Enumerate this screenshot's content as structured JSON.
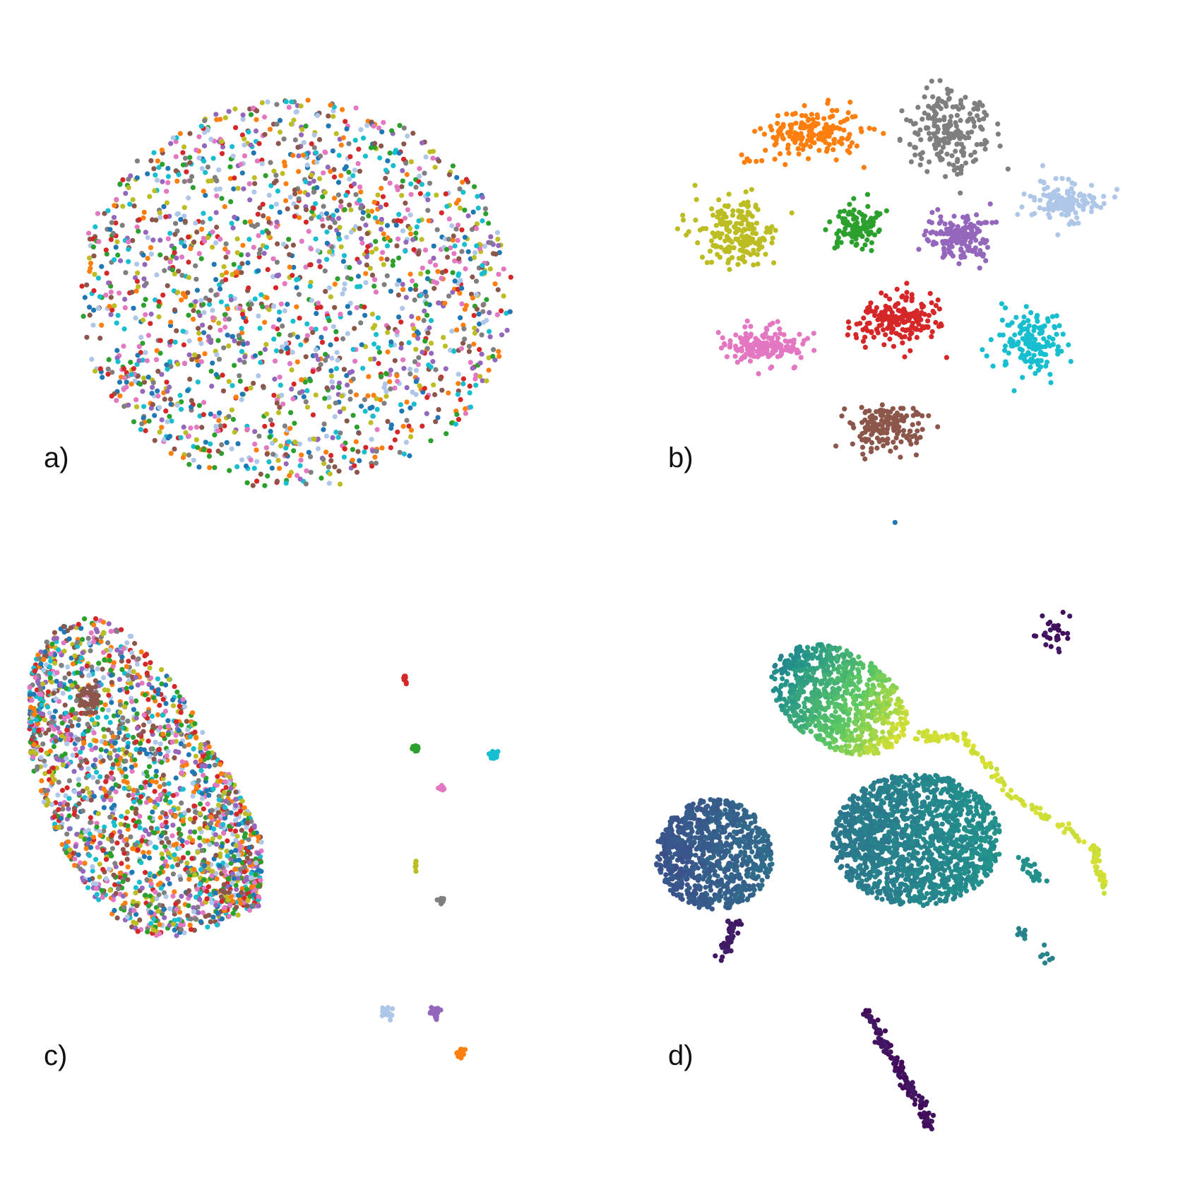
{
  "chart_data": [
    {
      "type": "scatter",
      "panel_label": "a)",
      "description_shape": "single diffuse disc, all classes intermixed",
      "groups": [
        {
          "shape": "disc",
          "cx": 0.0,
          "cy": 0.0,
          "rx": 5.9,
          "ry": 5.3,
          "n": 1900,
          "colors": [
            "#1f77b4",
            "#ff7f0e",
            "#2ca02c",
            "#d62728",
            "#9467bd",
            "#8c564b",
            "#e377c2",
            "#7f7f7f",
            "#bcbd22",
            "#17becf",
            "#aec7e8"
          ]
        }
      ],
      "xlim": [
        -8,
        8
      ],
      "ylim": [
        -8,
        8
      ]
    },
    {
      "type": "scatter",
      "panel_label": "b)",
      "groups": [
        {
          "shape": "blob",
          "color": "#ff7f0e",
          "cx": -1.9,
          "cy": 4.4,
          "rx": 1.2,
          "ry": 0.6,
          "n": 180
        },
        {
          "shape": "line",
          "color": "#ff7f0e",
          "x0": -3.8,
          "y0": 3.5,
          "x1": -3.3,
          "y1": 3.7,
          "n": 6
        },
        {
          "shape": "blob",
          "color": "#7f7f7f",
          "cx": 1.8,
          "cy": 4.4,
          "rx": 1.0,
          "ry": 1.0,
          "n": 200
        },
        {
          "shape": "blob",
          "color": "#bcbd22",
          "cx": -4.0,
          "cy": 1.7,
          "rx": 1.0,
          "ry": 0.8,
          "n": 200
        },
        {
          "shape": "blob",
          "color": "#2ca02c",
          "cx": -0.7,
          "cy": 1.8,
          "rx": 0.6,
          "ry": 0.6,
          "n": 120
        },
        {
          "shape": "blob",
          "color": "#9467bd",
          "cx": 2.1,
          "cy": 1.6,
          "rx": 0.8,
          "ry": 0.6,
          "n": 160
        },
        {
          "shape": "blob",
          "color": "#aec7e8",
          "cx": 4.9,
          "cy": 2.5,
          "rx": 0.9,
          "ry": 0.5,
          "n": 130
        },
        {
          "shape": "blob",
          "color": "#d62728",
          "cx": 0.4,
          "cy": -0.7,
          "rx": 1.0,
          "ry": 0.6,
          "n": 190
        },
        {
          "shape": "blob",
          "color": "#e377c2",
          "cx": -3.3,
          "cy": -1.4,
          "rx": 1.0,
          "ry": 0.5,
          "n": 170
        },
        {
          "shape": "blob",
          "color": "#17becf",
          "cx": 4.0,
          "cy": -1.3,
          "rx": 0.7,
          "ry": 0.8,
          "n": 150
        },
        {
          "shape": "blob",
          "color": "#8c564b",
          "cx": 0.0,
          "cy": -3.6,
          "rx": 0.9,
          "ry": 0.6,
          "n": 150
        },
        {
          "shape": "blob",
          "color": "#1f77b4",
          "cx": 0.3,
          "cy": -6.2,
          "rx": 0.02,
          "ry": 0.02,
          "n": 1
        }
      ],
      "xlim": [
        -8,
        8
      ],
      "ylim": [
        -8,
        8
      ]
    },
    {
      "type": "scatter",
      "panel_label": "c)",
      "groups": [
        {
          "shape": "teardrop",
          "cx": -3.5,
          "cy": 0.9,
          "n": 2000,
          "colors": [
            "#1f77b4",
            "#ff7f0e",
            "#2ca02c",
            "#d62728",
            "#9467bd",
            "#8c564b",
            "#e377c2",
            "#7f7f7f",
            "#bcbd22",
            "#17becf",
            "#aec7e8"
          ]
        },
        {
          "shape": "ring",
          "color": "#8c564b",
          "cx": -5.6,
          "cy": 5.0,
          "rx": 0.35,
          "ry": 0.45,
          "n": 40
        },
        {
          "shape": "blob",
          "color": "#d62728",
          "cx": 3.0,
          "cy": 5.6,
          "rx": 0.05,
          "ry": 0.15,
          "n": 8
        },
        {
          "shape": "blob",
          "color": "#2ca02c",
          "cx": 3.3,
          "cy": 3.7,
          "rx": 0.08,
          "ry": 0.08,
          "n": 20
        },
        {
          "shape": "blob",
          "color": "#17becf",
          "cx": 5.4,
          "cy": 3.5,
          "rx": 0.12,
          "ry": 0.1,
          "n": 30
        },
        {
          "shape": "blob",
          "color": "#e377c2",
          "cx": 4.0,
          "cy": 2.6,
          "rx": 0.07,
          "ry": 0.06,
          "n": 12
        },
        {
          "shape": "blob",
          "color": "#bcbd22",
          "cx": 3.3,
          "cy": 0.5,
          "rx": 0.03,
          "ry": 0.15,
          "n": 6
        },
        {
          "shape": "blob",
          "color": "#8c564b",
          "cx": -1.9,
          "cy": -0.2,
          "rx": 0.08,
          "ry": 0.05,
          "n": 6
        },
        {
          "shape": "blob",
          "color": "#7f7f7f",
          "cx": 4.0,
          "cy": -0.5,
          "rx": 0.08,
          "ry": 0.08,
          "n": 14
        },
        {
          "shape": "blob",
          "color": "#aec7e8",
          "cx": 2.5,
          "cy": -3.5,
          "rx": 0.12,
          "ry": 0.12,
          "n": 30
        },
        {
          "shape": "blob",
          "color": "#9467bd",
          "cx": 3.8,
          "cy": -3.5,
          "rx": 0.12,
          "ry": 0.12,
          "n": 30
        },
        {
          "shape": "blob",
          "color": "#ff7f0e",
          "cx": 4.5,
          "cy": -4.6,
          "rx": 0.12,
          "ry": 0.1,
          "n": 25
        }
      ],
      "xlim": [
        -8,
        8
      ],
      "ylim": [
        -8,
        8
      ]
    },
    {
      "type": "scatter",
      "panel_label": "d)",
      "colormap": "viridis",
      "groups": [
        {
          "shape": "gradient-blob",
          "cx": -1.2,
          "cy": 5.0,
          "rx": 2.0,
          "ry": 1.3,
          "angle": -30,
          "n": 900,
          "c0": 0.45,
          "c1": 0.95
        },
        {
          "shape": "curve",
          "points": [
            [
              0.8,
              4.0
            ],
            [
              2.2,
              4.0
            ],
            [
              3.4,
              2.5
            ],
            [
              5.7,
              1.0
            ],
            [
              6.0,
              -0.2
            ]
          ],
          "n": 160,
          "c": 0.93
        },
        {
          "shape": "blob",
          "cx": 4.6,
          "cy": 6.8,
          "rx": 0.4,
          "ry": 0.5,
          "n": 30,
          "c": 0.05
        },
        {
          "shape": "gradient-blob",
          "cx": -4.6,
          "cy": 0.8,
          "rx": 1.6,
          "ry": 1.5,
          "angle": 0,
          "n": 900,
          "c0": 0.25,
          "c1": 0.35
        },
        {
          "shape": "line",
          "x0": -4.0,
          "y0": -1.0,
          "x1": -4.4,
          "y1": -2.0,
          "n": 40,
          "c": 0.08
        },
        {
          "shape": "gradient-blob",
          "cx": 0.9,
          "cy": 1.2,
          "rx": 2.3,
          "ry": 1.8,
          "angle": 0,
          "n": 1500,
          "c0": 0.4,
          "c1": 0.5
        },
        {
          "shape": "line",
          "x0": 3.8,
          "y0": 0.7,
          "x1": 4.3,
          "y1": 0.0,
          "n": 25,
          "c": 0.5
        },
        {
          "shape": "line",
          "x0": 3.6,
          "y0": -1.2,
          "x1": 4.5,
          "y1": -2.1,
          "n": 15,
          "c": 0.45
        },
        {
          "shape": "line",
          "x0": -0.5,
          "y0": -3.4,
          "x1": 1.3,
          "y1": -6.6,
          "n": 160,
          "c": 0.05
        }
      ],
      "xlim": [
        -8,
        8
      ],
      "ylim": [
        -8,
        8
      ]
    }
  ]
}
